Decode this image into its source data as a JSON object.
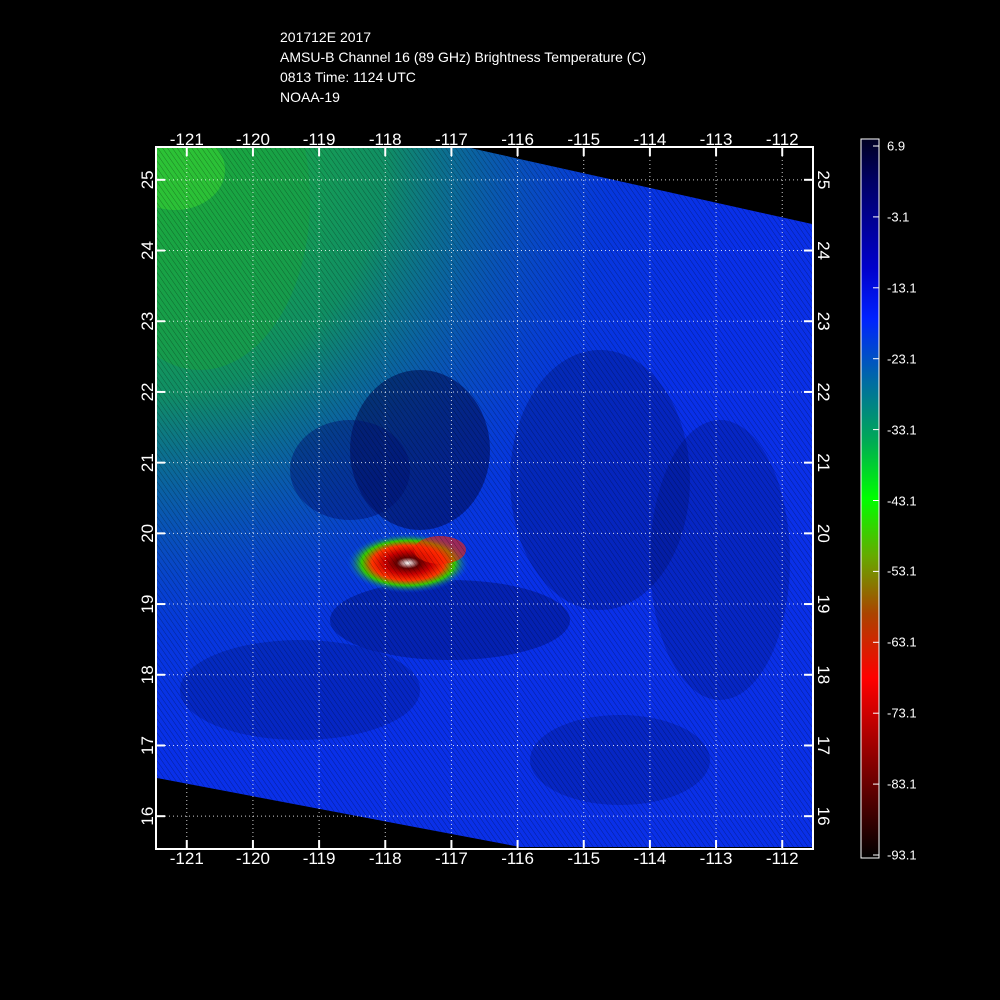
{
  "header": {
    "line1": "201712E 2017",
    "line2": "AMSU-B Channel 16 (89 GHz) Brightness Temperature (C)",
    "line3": "0813 Time: 1124 UTC",
    "line4": "NOAA-19"
  },
  "map": {
    "lon_labels": [
      "-121",
      "-120",
      "-119",
      "-118",
      "-117",
      "-116",
      "-115",
      "-114",
      "-113",
      "-112"
    ],
    "lat_labels": [
      "16",
      "17",
      "18",
      "19",
      "20",
      "21",
      "22",
      "23",
      "24",
      "25"
    ],
    "lon_range": [
      -121.45,
      -111.55
    ],
    "lat_range": [
      15.55,
      25.45
    ],
    "grid": "dotted",
    "storm_center": {
      "lon": -117.7,
      "lat": 19.6
    }
  },
  "colorbar": {
    "labels": [
      "6.9",
      "-3.1",
      "-13.1",
      "-23.1",
      "-33.1",
      "-43.1",
      "-53.1",
      "-63.1",
      "-73.1",
      "-83.1",
      "-93.1"
    ],
    "colors": [
      "#000022",
      "#000077",
      "#0000cc",
      "#0022ff",
      "#0055bb",
      "#008888",
      "#00cc33",
      "#00ff00",
      "#55aa00",
      "#886600",
      "#cc2200",
      "#ff0000",
      "#aa0000",
      "#660000",
      "#220000",
      "#000000"
    ]
  }
}
